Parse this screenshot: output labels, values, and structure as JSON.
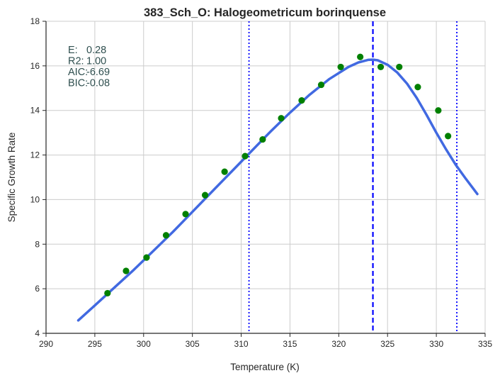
{
  "chart_data": {
    "type": "scatter",
    "title": "383_Sch_O: Halogeometricum borinquense",
    "xlabel": "Temperature (K)",
    "ylabel": "Specific Growth Rate",
    "xlim": [
      290,
      335
    ],
    "ylim": [
      4,
      18
    ],
    "xticks": [
      290,
      295,
      300,
      305,
      310,
      315,
      320,
      325,
      330,
      335
    ],
    "yticks": [
      4,
      6,
      8,
      10,
      12,
      14,
      16,
      18
    ],
    "grid": true,
    "stats": [
      {
        "label": "E:",
        "value": "0.28"
      },
      {
        "label": "R2:",
        "value": "1.00"
      },
      {
        "label": "AIC:",
        "value": "-6.69"
      },
      {
        "label": "BIC:",
        "value": "-0.08"
      }
    ],
    "observed_points": {
      "color": "#008000",
      "x": [
        296.3,
        298.2,
        300.3,
        302.3,
        304.3,
        306.3,
        308.3,
        310.4,
        312.2,
        314.1,
        316.2,
        318.2,
        320.2,
        322.2,
        324.3,
        326.2,
        328.1,
        330.2,
        331.2
      ],
      "y": [
        5.8,
        6.8,
        7.4,
        8.4,
        9.35,
        10.2,
        11.25,
        11.95,
        12.7,
        13.65,
        14.45,
        15.15,
        15.95,
        16.4,
        15.95,
        15.95,
        15.05,
        14.0,
        12.85
      ]
    },
    "fitted_curve": {
      "color": "#4169e1",
      "x": [
        293.3,
        295,
        297,
        299,
        301,
        303,
        305,
        307,
        309,
        311,
        313,
        315,
        317,
        319,
        321,
        322,
        323,
        323.5,
        324,
        325,
        326,
        327,
        328,
        329,
        330,
        331,
        332,
        333,
        334.2
      ],
      "y": [
        4.58,
        5.25,
        6.05,
        6.85,
        7.7,
        8.55,
        9.45,
        10.35,
        11.25,
        12.15,
        13.05,
        13.9,
        14.7,
        15.4,
        15.95,
        16.15,
        16.27,
        16.28,
        16.25,
        16.05,
        15.7,
        15.2,
        14.55,
        13.8,
        13.0,
        12.25,
        11.55,
        10.95,
        10.25
      ]
    },
    "vertical_lines": [
      {
        "x": 310.8,
        "style": "dotted",
        "color": "#0000ff"
      },
      {
        "x": 323.5,
        "style": "dashed",
        "color": "#0000ff"
      },
      {
        "x": 332.1,
        "style": "dotted",
        "color": "#0000ff"
      }
    ],
    "style": {
      "background": "#ffffff",
      "grid_color": "#cccccc",
      "axis_color": "#262626"
    }
  }
}
